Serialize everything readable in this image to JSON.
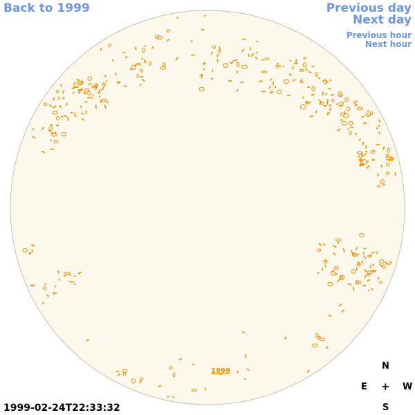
{
  "nav": {
    "back_label": "Back to 1999",
    "prev_day_label": "Previous day",
    "next_day_label": "Next day",
    "prev_hour_label": "Previous hour",
    "next_hour_label": "Next hour"
  },
  "disk": {
    "year_label": "1999",
    "fill_color": "#fdf8ec",
    "edge_color": "#c8bfae",
    "feature_color": "#f08c00"
  },
  "timestamp": "1999-02-24T22:33:32",
  "compass": {
    "north": "N",
    "east": "E",
    "center": "+",
    "west": "W",
    "south": "S"
  }
}
